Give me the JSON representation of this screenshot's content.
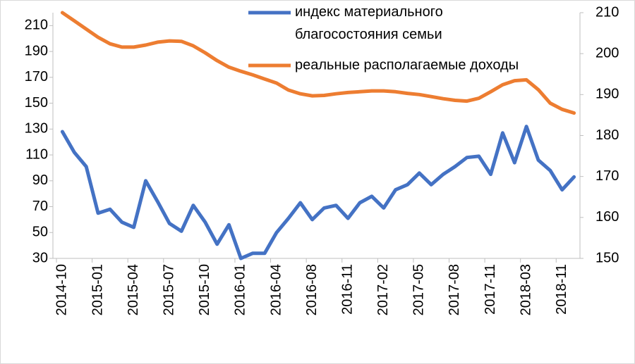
{
  "chart_data": {
    "type": "line",
    "categories": [
      "2014-10",
      null,
      null,
      "2015-01",
      null,
      null,
      "2015-04",
      null,
      null,
      "2015-07",
      null,
      null,
      "2015-10",
      null,
      null,
      "2016-01",
      null,
      null,
      "2016-04",
      null,
      null,
      "2016-08",
      null,
      null,
      "2016-11",
      null,
      null,
      "2017-02",
      null,
      null,
      "2017-05",
      null,
      null,
      "2017-08",
      null,
      null,
      "2017-11",
      null,
      null,
      "2018-03",
      null,
      null,
      "2018-11",
      null
    ],
    "series": [
      {
        "name": "индекс материального благосостояния семьи",
        "color": "#4472c4",
        "axis": "y",
        "values": [
          128,
          112,
          101,
          65,
          68,
          58,
          54,
          90,
          74,
          57,
          51,
          71,
          58,
          41,
          56,
          30,
          34,
          34,
          50,
          61,
          73,
          60,
          69,
          71,
          61,
          73,
          78,
          69,
          83,
          87,
          96,
          87,
          95,
          101,
          108,
          109,
          95,
          127,
          104,
          132,
          106,
          98,
          83,
          93
        ]
      },
      {
        "name": "реальные располагаемые доходы",
        "color": "#ed7d31",
        "axis": "y2",
        "values": [
          210,
          208,
          206,
          204,
          202.4,
          201.6,
          201.6,
          202.1,
          202.8,
          203.1,
          203,
          201.9,
          200.2,
          198.3,
          196.7,
          195.7,
          194.8,
          193.8,
          192.8,
          191.1,
          190.2,
          189.7,
          189.8,
          190.2,
          190.5,
          190.7,
          190.9,
          190.9,
          190.7,
          190.3,
          190,
          189.5,
          189,
          188.6,
          188.4,
          189.1,
          190.7,
          192.4,
          193.4,
          193.6,
          191.2,
          187.9,
          186.4,
          185.5
        ]
      }
    ],
    "ylim": [
      30,
      220
    ],
    "yticks": [
      30,
      50,
      70,
      90,
      110,
      130,
      150,
      170,
      190,
      210
    ],
    "y2lim": [
      150,
      210
    ],
    "y2ticks": [
      150,
      160,
      170,
      180,
      190,
      200,
      210
    ],
    "legend": "top"
  }
}
